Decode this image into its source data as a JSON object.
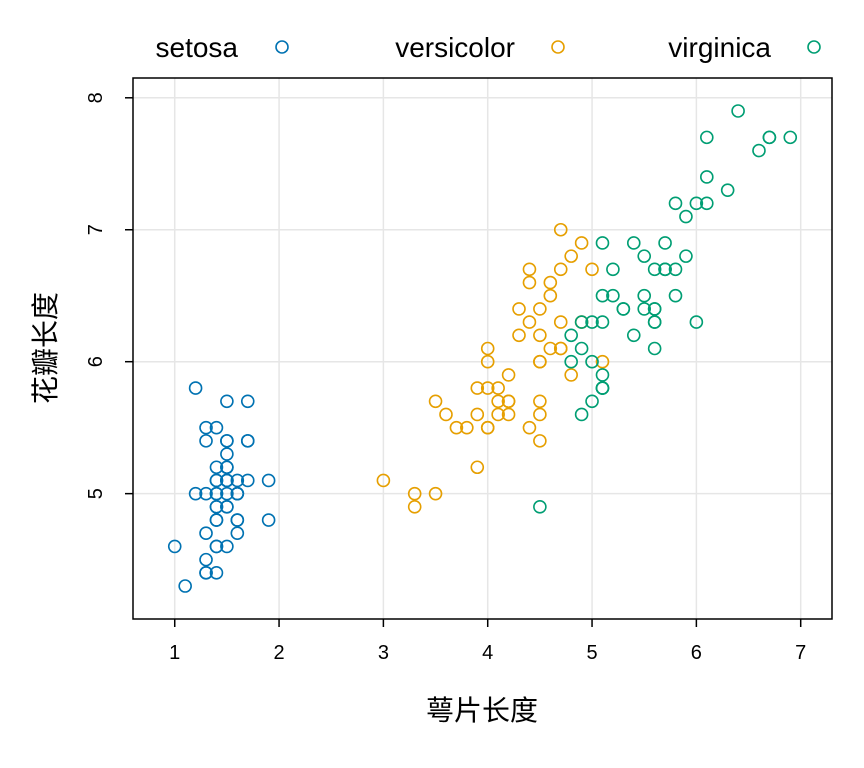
{
  "chart_data": {
    "type": "scatter",
    "title": "",
    "xlabel": "萼片长度",
    "ylabel": "花瓣长度",
    "xlim": [
      0.6,
      7.3
    ],
    "ylim": [
      4.05,
      8.15
    ],
    "xticks": [
      1,
      2,
      3,
      4,
      5,
      6,
      7
    ],
    "yticks": [
      5,
      6,
      7,
      8
    ],
    "grid": true,
    "legend_position": "top",
    "marker": "open-circle",
    "series": [
      {
        "name": "setosa",
        "color": "#0072B2",
        "points": [
          [
            1.4,
            5.1
          ],
          [
            1.4,
            4.9
          ],
          [
            1.3,
            4.7
          ],
          [
            1.5,
            4.6
          ],
          [
            1.4,
            5.0
          ],
          [
            1.7,
            5.4
          ],
          [
            1.4,
            4.6
          ],
          [
            1.5,
            5.0
          ],
          [
            1.4,
            4.4
          ],
          [
            1.5,
            4.9
          ],
          [
            1.5,
            5.4
          ],
          [
            1.6,
            4.8
          ],
          [
            1.4,
            4.8
          ],
          [
            1.1,
            4.3
          ],
          [
            1.2,
            5.8
          ],
          [
            1.5,
            5.7
          ],
          [
            1.3,
            5.4
          ],
          [
            1.4,
            5.1
          ],
          [
            1.7,
            5.7
          ],
          [
            1.5,
            5.1
          ],
          [
            1.7,
            5.4
          ],
          [
            1.5,
            5.1
          ],
          [
            1.0,
            4.6
          ],
          [
            1.7,
            5.1
          ],
          [
            1.9,
            4.8
          ],
          [
            1.6,
            5.0
          ],
          [
            1.6,
            5.0
          ],
          [
            1.5,
            5.2
          ],
          [
            1.4,
            5.2
          ],
          [
            1.6,
            4.7
          ],
          [
            1.6,
            4.8
          ],
          [
            1.5,
            5.4
          ],
          [
            1.5,
            5.2
          ],
          [
            1.4,
            5.5
          ],
          [
            1.5,
            4.9
          ],
          [
            1.2,
            5.0
          ],
          [
            1.3,
            5.5
          ],
          [
            1.4,
            4.9
          ],
          [
            1.3,
            4.4
          ],
          [
            1.5,
            5.1
          ],
          [
            1.3,
            5.0
          ],
          [
            1.3,
            4.5
          ],
          [
            1.3,
            4.4
          ],
          [
            1.6,
            5.0
          ],
          [
            1.9,
            5.1
          ],
          [
            1.4,
            4.8
          ],
          [
            1.6,
            5.1
          ],
          [
            1.4,
            4.6
          ],
          [
            1.5,
            5.3
          ],
          [
            1.4,
            5.0
          ]
        ]
      },
      {
        "name": "versicolor",
        "color": "#E69F00",
        "points": [
          [
            4.7,
            7.0
          ],
          [
            4.5,
            6.4
          ],
          [
            4.9,
            6.9
          ],
          [
            4.0,
            5.5
          ],
          [
            4.6,
            6.5
          ],
          [
            4.5,
            5.7
          ],
          [
            4.7,
            6.3
          ],
          [
            3.3,
            4.9
          ],
          [
            4.6,
            6.6
          ],
          [
            3.9,
            5.2
          ],
          [
            3.5,
            5.0
          ],
          [
            4.2,
            5.9
          ],
          [
            4.0,
            6.0
          ],
          [
            4.7,
            6.1
          ],
          [
            3.6,
            5.6
          ],
          [
            4.4,
            6.7
          ],
          [
            4.5,
            5.6
          ],
          [
            4.1,
            5.8
          ],
          [
            4.5,
            6.2
          ],
          [
            3.9,
            5.6
          ],
          [
            4.8,
            5.9
          ],
          [
            4.0,
            6.1
          ],
          [
            4.9,
            6.3
          ],
          [
            4.7,
            6.1
          ],
          [
            4.3,
            6.4
          ],
          [
            4.4,
            6.6
          ],
          [
            4.8,
            6.8
          ],
          [
            5.0,
            6.7
          ],
          [
            4.5,
            6.0
          ],
          [
            3.5,
            5.7
          ],
          [
            3.8,
            5.5
          ],
          [
            3.7,
            5.5
          ],
          [
            3.9,
            5.8
          ],
          [
            5.1,
            6.0
          ],
          [
            4.5,
            5.4
          ],
          [
            4.5,
            6.0
          ],
          [
            4.7,
            6.7
          ],
          [
            4.4,
            6.3
          ],
          [
            4.1,
            5.6
          ],
          [
            4.0,
            5.5
          ],
          [
            4.4,
            5.5
          ],
          [
            4.6,
            6.1
          ],
          [
            4.0,
            5.8
          ],
          [
            3.3,
            5.0
          ],
          [
            4.2,
            5.6
          ],
          [
            4.2,
            5.7
          ],
          [
            4.2,
            5.7
          ],
          [
            4.3,
            6.2
          ],
          [
            3.0,
            5.1
          ],
          [
            4.1,
            5.7
          ]
        ]
      },
      {
        "name": "virginica",
        "color": "#009E73",
        "points": [
          [
            6.0,
            6.3
          ],
          [
            5.1,
            5.8
          ],
          [
            5.9,
            7.1
          ],
          [
            5.6,
            6.3
          ],
          [
            5.8,
            6.5
          ],
          [
            6.6,
            7.6
          ],
          [
            4.5,
            4.9
          ],
          [
            6.3,
            7.3
          ],
          [
            5.8,
            6.7
          ],
          [
            6.1,
            7.2
          ],
          [
            5.1,
            6.5
          ],
          [
            5.3,
            6.4
          ],
          [
            5.5,
            6.8
          ],
          [
            5.0,
            5.7
          ],
          [
            5.1,
            5.8
          ],
          [
            5.3,
            6.4
          ],
          [
            5.5,
            6.5
          ],
          [
            6.7,
            7.7
          ],
          [
            6.9,
            7.7
          ],
          [
            5.0,
            6.0
          ],
          [
            5.7,
            6.9
          ],
          [
            4.9,
            5.6
          ],
          [
            6.7,
            7.7
          ],
          [
            4.9,
            6.3
          ],
          [
            5.7,
            6.7
          ],
          [
            6.0,
            7.2
          ],
          [
            4.8,
            6.2
          ],
          [
            4.9,
            6.1
          ],
          [
            5.6,
            6.4
          ],
          [
            5.8,
            7.2
          ],
          [
            6.1,
            7.4
          ],
          [
            6.4,
            7.9
          ],
          [
            5.6,
            6.4
          ],
          [
            5.1,
            6.3
          ],
          [
            5.6,
            6.1
          ],
          [
            6.1,
            7.7
          ],
          [
            5.6,
            6.3
          ],
          [
            5.5,
            6.4
          ],
          [
            4.8,
            6.0
          ],
          [
            5.4,
            6.9
          ],
          [
            5.6,
            6.7
          ],
          [
            5.1,
            6.9
          ],
          [
            5.1,
            5.8
          ],
          [
            5.9,
            6.8
          ],
          [
            5.7,
            6.7
          ],
          [
            5.2,
            6.7
          ],
          [
            5.0,
            6.3
          ],
          [
            5.2,
            6.5
          ],
          [
            5.4,
            6.2
          ],
          [
            5.1,
            5.9
          ]
        ]
      }
    ]
  }
}
